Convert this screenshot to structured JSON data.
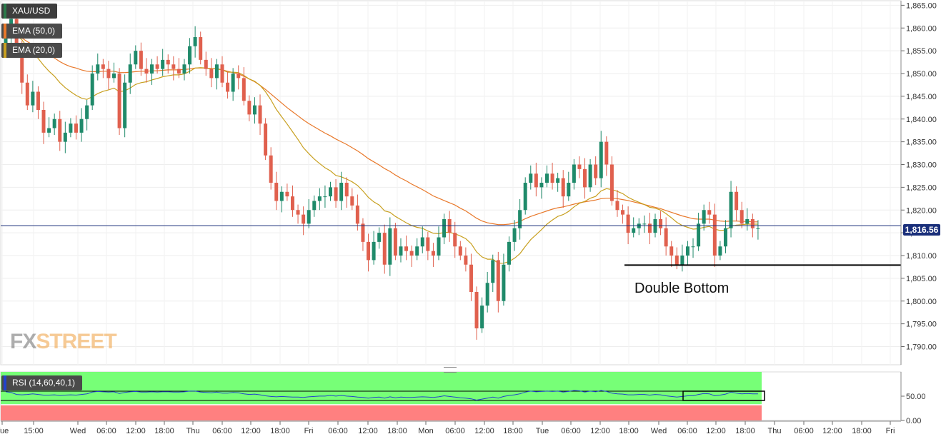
{
  "symbol": "XAU/USD",
  "indicators": {
    "ema50_label": "EMA (50,0)",
    "ema20_label": "EMA (20,0)",
    "rsi_label": "RSI (14,60,40,1)"
  },
  "current_price_label": "1,816.56",
  "annotation": "Double Bottom",
  "watermark": {
    "fx": "FX",
    "street": "STREET"
  },
  "colors": {
    "up": "#1f8a6a",
    "down": "#e0604e",
    "ema50": "#e8782a",
    "ema20": "#c8a020",
    "price_line": "#1a2f7a",
    "rsi_line": "#2244cc",
    "rsi_overbought": "#77ff77",
    "rsi_oversold": "#ff8080"
  },
  "chart_data": {
    "type": "candlestick",
    "timeframe": "hourly",
    "ylim": [
      1786,
      1866
    ],
    "yticks": [
      "1,790.00",
      "1,795.00",
      "1,800.00",
      "1,805.00",
      "1,810.00",
      "1,815.00",
      "1,820.00",
      "1,825.00",
      "1,830.00",
      "1,835.00",
      "1,840.00",
      "1,845.00",
      "1,850.00",
      "1,855.00",
      "1,860.00",
      "1,865.00"
    ],
    "xticks": [
      "Tue",
      "15:00",
      "Wed",
      "06:00",
      "12:00",
      "18:00",
      "Thu",
      "06:00",
      "12:00",
      "18:00",
      "Fri",
      "06:00",
      "12:00",
      "18:00",
      "Mon",
      "06:00",
      "12:00",
      "18:00",
      "Tue",
      "06:00",
      "12:00",
      "18:00",
      "Wed",
      "06:00",
      "12:00",
      "18:00",
      "Thu",
      "06:00",
      "12:00",
      "18:00",
      "Fri"
    ],
    "current_price": 1816.56,
    "support_level": 1807.9,
    "closes": [
      1858,
      1862,
      1856,
      1848,
      1843,
      1846,
      1842,
      1837,
      1838,
      1840,
      1835,
      1837,
      1839,
      1837,
      1840,
      1843,
      1850,
      1852,
      1851,
      1849,
      1850,
      1838,
      1848,
      1852,
      1855,
      1851,
      1850,
      1852,
      1851,
      1853,
      1852,
      1851,
      1850,
      1852,
      1856,
      1858,
      1853,
      1851,
      1849,
      1852,
      1848,
      1846,
      1850,
      1849,
      1844,
      1841,
      1843,
      1839,
      1832,
      1826,
      1822,
      1824,
      1823,
      1820,
      1819,
      1817,
      1820,
      1822,
      1823,
      1823,
      1825,
      1822,
      1826,
      1823,
      1821,
      1817,
      1813,
      1809,
      1813,
      1815,
      1808,
      1816,
      1810,
      1812,
      1811,
      1810,
      1812,
      1814,
      1811,
      1810,
      1814,
      1818,
      1815,
      1812,
      1810,
      1808,
      1802,
      1794,
      1799,
      1804,
      1809,
      1800,
      1808,
      1813,
      1816,
      1820,
      1826,
      1828,
      1825,
      1826,
      1828,
      1826,
      1827,
      1823,
      1826,
      1830,
      1829,
      1825,
      1830,
      1827,
      1835,
      1830,
      1822,
      1820,
      1819,
      1815,
      1816,
      1817,
      1817,
      1815,
      1818,
      1816,
      1812,
      1810,
      1808,
      1810,
      1812,
      1812,
      1817,
      1820,
      1819,
      1810,
      1812,
      1816,
      1824,
      1820,
      1817,
      1818,
      1816,
      1816
    ],
    "ema50": [
      1858,
      1858.5,
      1858.2,
      1857.8,
      1857,
      1856.3,
      1855.6,
      1854.8,
      1854.1,
      1853.4,
      1852.6,
      1852,
      1851.5,
      1851.2,
      1850.8,
      1850.5,
      1850.4,
      1850.4,
      1850.5,
      1850.5,
      1850.5,
      1850.2,
      1850.2,
      1850.3,
      1850.4,
      1850.5,
      1850.5,
      1850.6,
      1850.6,
      1850.7,
      1850.8,
      1850.8,
      1850.8,
      1850.9,
      1851,
      1851.2,
      1851.2,
      1851.2,
      1851.1,
      1851,
      1850.8,
      1850.5,
      1850.2,
      1849.9,
      1849.4,
      1848.8,
      1848.2,
      1847.4,
      1846.5,
      1845.5,
      1844.5,
      1843.5,
      1842.5,
      1841.6,
      1840.7,
      1839.8,
      1839,
      1838.3,
      1837.6,
      1836.9,
      1836.3,
      1835.6,
      1835,
      1834.4,
      1833.7,
      1833,
      1832.2,
      1831.3,
      1830.6,
      1829.9,
      1829.1,
      1828.5,
      1827.7,
      1827,
      1826.4,
      1825.7,
      1825.1,
      1824.5,
      1823.8,
      1823.1,
      1822.6,
      1822.1,
      1821.6,
      1821.1,
      1820.4,
      1819.8,
      1819,
      1818.2,
      1817.6,
      1817.2,
      1817,
      1816.8,
      1816.8,
      1816.9,
      1817.1,
      1817.5,
      1818.1,
      1818.6,
      1819,
      1819.4,
      1819.8,
      1820.2,
      1820.5,
      1820.7,
      1821,
      1821.3,
      1821.6,
      1821.8,
      1822,
      1822.2,
      1822.5,
      1822.6,
      1822.6,
      1822.5,
      1822.3,
      1822.1,
      1821.8,
      1821.5,
      1821.2,
      1820.9,
      1820.6,
      1820.3,
      1819.9,
      1819.5,
      1819.1,
      1818.7,
      1818.4,
      1818.1,
      1818,
      1818,
      1818,
      1817.8,
      1817.6,
      1817.5,
      1817.6,
      1817.6,
      1817.5,
      1817.5,
      1817.4,
      1817.4
    ],
    "ema20": [
      1858,
      1858.8,
      1858.5,
      1857.4,
      1855.8,
      1854.7,
      1853.3,
      1851.8,
      1850.5,
      1849.4,
      1848,
      1846.9,
      1846,
      1845.2,
      1844.6,
      1844.3,
      1844.9,
      1845.6,
      1846.1,
      1846.4,
      1846.8,
      1846,
      1846.2,
      1846.8,
      1847.6,
      1848,
      1848.2,
      1848.6,
      1848.9,
      1849.3,
      1849.5,
      1849.7,
      1849.7,
      1849.9,
      1850.5,
      1851.2,
      1851.3,
      1851.2,
      1851,
      1851.1,
      1850.8,
      1850.3,
      1850.3,
      1850.2,
      1849.6,
      1848.8,
      1848.3,
      1847.4,
      1846,
      1844.2,
      1842.1,
      1840.5,
      1838.9,
      1837.2,
      1835.5,
      1833.7,
      1832.4,
      1831.2,
      1830.2,
      1829.3,
      1828.6,
      1827.6,
      1827.3,
      1826.8,
      1826.2,
      1825.4,
      1824.2,
      1822.8,
      1821.8,
      1821.1,
      1819.8,
      1819.5,
      1818.6,
      1817.9,
      1817.2,
      1816.6,
      1816.2,
      1816,
      1815.4,
      1814.9,
      1814.8,
      1815.1,
      1815.1,
      1814.8,
      1814.3,
      1813.7,
      1812.6,
      1810.8,
      1809.7,
      1809.2,
      1809.2,
      1808.3,
      1808.3,
      1808.7,
      1809.4,
      1810.4,
      1812,
      1813.5,
      1814.6,
      1815.7,
      1816.9,
      1817.8,
      1818.6,
      1819,
      1819.7,
      1820.7,
      1821.5,
      1821.9,
      1822.6,
      1823,
      1824.2,
      1824.7,
      1824.5,
      1824.1,
      1823.6,
      1822.8,
      1822.2,
      1821.7,
      1821.2,
      1820.6,
      1820.4,
      1820,
      1819.2,
      1818.3,
      1817.3,
      1816.6,
      1816.2,
      1815.8,
      1815.9,
      1816.2,
      1816.4,
      1815.8,
      1815.5,
      1815.6,
      1816.4,
      1816.7,
      1816.8,
      1816.9,
      1816.9,
      1816.9
    ],
    "rsi": {
      "ylim": [
        0,
        100
      ],
      "yticks": [
        "0.00",
        "50.00"
      ],
      "overbought": 60,
      "oversold": 40,
      "values": [
        56,
        54,
        48,
        47,
        48,
        50,
        48,
        46,
        46,
        47,
        45,
        46,
        47,
        46,
        48,
        50,
        55,
        57,
        56,
        55,
        56,
        51,
        54,
        56,
        57,
        55,
        55,
        56,
        55,
        56,
        56,
        55,
        55,
        56,
        58,
        58,
        55,
        54,
        53,
        55,
        52,
        52,
        54,
        53,
        50,
        48,
        49,
        47,
        44,
        42,
        41,
        42,
        41,
        40,
        40,
        39,
        41,
        42,
        43,
        43,
        45,
        43,
        45,
        43,
        42,
        40,
        39,
        37,
        39,
        40,
        37,
        41,
        38,
        40,
        39,
        39,
        40,
        41,
        40,
        39,
        41,
        44,
        42,
        40,
        38,
        37,
        35,
        31,
        34,
        37,
        40,
        37,
        42,
        45,
        47,
        50,
        55,
        58,
        56,
        57,
        58,
        57,
        58,
        55,
        57,
        60,
        59,
        55,
        58,
        56,
        60,
        57,
        52,
        50,
        49,
        47,
        47,
        48,
        48,
        46,
        48,
        47,
        44,
        42,
        40,
        42,
        44,
        44,
        48,
        51,
        50,
        44,
        46,
        49,
        55,
        52,
        50,
        51,
        50,
        50
      ]
    }
  }
}
